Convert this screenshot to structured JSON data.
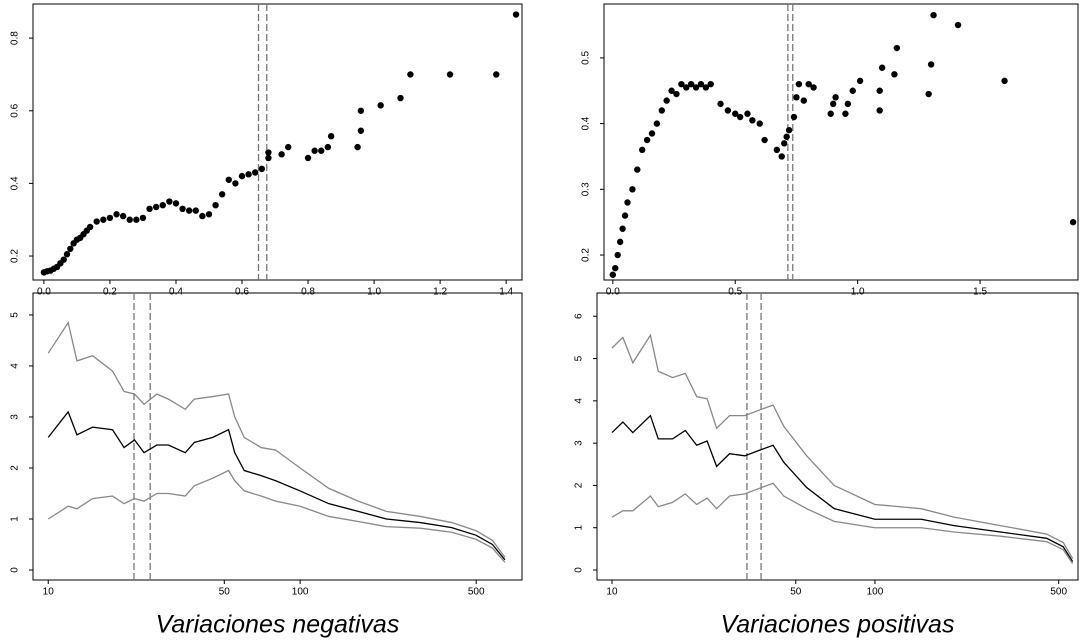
{
  "chart_data": [
    {
      "type": "scatter",
      "color": "#000000",
      "x": [
        0,
        0.01,
        0.02,
        0.03,
        0.04,
        0.05,
        0.06,
        0.07,
        0.08,
        0.09,
        0.1,
        0.11,
        0.12,
        0.13,
        0.14,
        0.16,
        0.18,
        0.2,
        0.22,
        0.24,
        0.26,
        0.28,
        0.3,
        0.32,
        0.34,
        0.36,
        0.38,
        0.4,
        0.42,
        0.44,
        0.46,
        0.48,
        0.5,
        0.52,
        0.54,
        0.56,
        0.58,
        0.6,
        0.62,
        0.64,
        0.66,
        0.68,
        0.68,
        0.72,
        0.74,
        0.8,
        0.82,
        0.84,
        0.86,
        0.87,
        0.95,
        0.96,
        0.96,
        1.02,
        1.08,
        1.11,
        1.23,
        1.37,
        1.43
      ],
      "values": [
        0.155,
        0.158,
        0.16,
        0.165,
        0.17,
        0.18,
        0.19,
        0.205,
        0.22,
        0.235,
        0.245,
        0.25,
        0.26,
        0.27,
        0.28,
        0.295,
        0.3,
        0.305,
        0.315,
        0.31,
        0.3,
        0.3,
        0.305,
        0.33,
        0.335,
        0.34,
        0.35,
        0.345,
        0.33,
        0.325,
        0.325,
        0.31,
        0.315,
        0.34,
        0.37,
        0.41,
        0.4,
        0.42,
        0.425,
        0.43,
        0.44,
        0.47,
        0.485,
        0.48,
        0.5,
        0.47,
        0.49,
        0.49,
        0.5,
        0.53,
        0.5,
        0.545,
        0.6,
        0.615,
        0.635,
        0.7,
        0.7,
        0.7,
        0.865
      ],
      "xlim": [
        -0.033,
        1.448
      ],
      "ylim": [
        0.134,
        0.894
      ],
      "xticks": [
        {
          "value": 0,
          "label": "0.0"
        },
        0.2,
        0.4,
        0.6,
        0.8,
        {
          "value": 1,
          "label": "1.0"
        },
        1.2,
        1.4
      ],
      "yticks": [
        0.2,
        0.4,
        0.6,
        0.8
      ],
      "vlines": [
        0.65,
        0.675
      ]
    },
    {
      "type": "scatter",
      "color": "#000000",
      "x": [
        0,
        0.01,
        0.02,
        0.03,
        0.04,
        0.05,
        0.06,
        0.08,
        0.1,
        0.12,
        0.14,
        0.16,
        0.18,
        0.2,
        0.22,
        0.24,
        0.26,
        0.28,
        0.3,
        0.32,
        0.34,
        0.36,
        0.38,
        0.4,
        0.44,
        0.47,
        0.5,
        0.52,
        0.55,
        0.57,
        0.6,
        0.62,
        0.67,
        0.69,
        0.7,
        0.71,
        0.72,
        0.74,
        0.75,
        0.76,
        0.78,
        0.8,
        0.82,
        0.89,
        0.9,
        0.91,
        0.95,
        0.96,
        0.98,
        1.01,
        1.09,
        1.09,
        1.1,
        1.15,
        1.16,
        1.29,
        1.3,
        1.31,
        1.41,
        1.6,
        1.88
      ],
      "values": [
        0.17,
        0.18,
        0.2,
        0.22,
        0.24,
        0.26,
        0.28,
        0.3,
        0.33,
        0.36,
        0.375,
        0.385,
        0.4,
        0.42,
        0.435,
        0.45,
        0.445,
        0.46,
        0.455,
        0.46,
        0.455,
        0.46,
        0.455,
        0.46,
        0.43,
        0.42,
        0.415,
        0.41,
        0.415,
        0.405,
        0.4,
        0.375,
        0.36,
        0.35,
        0.37,
        0.38,
        0.39,
        0.41,
        0.44,
        0.46,
        0.435,
        0.46,
        0.455,
        0.415,
        0.43,
        0.44,
        0.415,
        0.43,
        0.45,
        0.465,
        0.42,
        0.45,
        0.485,
        0.475,
        0.515,
        0.445,
        0.49,
        0.565,
        0.55,
        0.465,
        0.25
      ],
      "xlim": [
        -0.036,
        1.9
      ],
      "ylim": [
        0.162,
        0.582
      ],
      "xticks": [
        {
          "value": 0,
          "label": "0.0"
        },
        0.5,
        {
          "value": 1,
          "label": "1.0"
        },
        1.5
      ],
      "yticks": [
        0.2,
        0.3,
        0.4,
        0.5
      ],
      "vlines": [
        0.715,
        0.735
      ]
    },
    {
      "type": "line",
      "xscale": "log",
      "xlabel": "Variaciones negativas",
      "x": [
        10,
        12,
        13,
        15,
        18,
        20,
        22,
        24,
        27,
        30,
        35,
        38,
        45,
        52,
        55,
        60,
        70,
        80,
        100,
        130,
        170,
        220,
        300,
        400,
        500,
        580,
        650
      ],
      "series": [
        {
          "color": "#888888",
          "values": [
            4.25,
            4.85,
            4.1,
            4.2,
            3.9,
            3.5,
            3.45,
            3.25,
            3.45,
            3.35,
            3.15,
            3.35,
            3.4,
            3.45,
            3.0,
            2.6,
            2.4,
            2.35,
            2.0,
            1.6,
            1.35,
            1.15,
            1.05,
            0.93,
            0.77,
            0.58,
            0.25
          ]
        },
        {
          "color": "#000000",
          "values": [
            2.6,
            3.1,
            2.65,
            2.8,
            2.75,
            2.4,
            2.55,
            2.3,
            2.45,
            2.45,
            2.3,
            2.5,
            2.6,
            2.75,
            2.3,
            1.95,
            1.85,
            1.75,
            1.55,
            1.3,
            1.15,
            1.0,
            0.93,
            0.83,
            0.68,
            0.5,
            0.2
          ]
        },
        {
          "color": "#888888",
          "values": [
            1.0,
            1.25,
            1.2,
            1.4,
            1.45,
            1.3,
            1.4,
            1.35,
            1.5,
            1.5,
            1.45,
            1.65,
            1.8,
            1.95,
            1.75,
            1.55,
            1.45,
            1.35,
            1.25,
            1.05,
            0.95,
            0.85,
            0.82,
            0.74,
            0.6,
            0.43,
            0.15
          ]
        }
      ],
      "xlim": [
        8.7,
        760
      ],
      "ylim": [
        -0.196,
        5.43
      ],
      "xticks": [
        10,
        50,
        100,
        500
      ],
      "yticks": [
        0,
        1,
        2,
        3,
        4,
        5
      ],
      "vlines": [
        21.9,
        25.4
      ]
    },
    {
      "type": "line",
      "xscale": "log",
      "xlabel": "Variaciones positivas",
      "x": [
        10,
        11,
        12,
        14,
        15,
        17,
        19,
        21,
        23,
        25,
        28,
        32,
        37,
        41,
        45,
        55,
        70,
        100,
        150,
        200,
        300,
        450,
        520,
        565
      ],
      "series": [
        {
          "color": "#888888",
          "values": [
            5.25,
            5.5,
            4.9,
            5.55,
            4.7,
            4.55,
            4.65,
            4.1,
            4.05,
            3.35,
            3.65,
            3.65,
            3.8,
            3.9,
            3.4,
            2.7,
            2.0,
            1.55,
            1.45,
            1.25,
            1.05,
            0.85,
            0.65,
            0.27
          ]
        },
        {
          "color": "#000000",
          "values": [
            3.25,
            3.5,
            3.25,
            3.65,
            3.1,
            3.1,
            3.3,
            2.95,
            3.05,
            2.45,
            2.75,
            2.7,
            2.85,
            2.95,
            2.55,
            1.95,
            1.45,
            1.2,
            1.2,
            1.05,
            0.9,
            0.75,
            0.55,
            0.2
          ]
        },
        {
          "color": "#888888",
          "values": [
            1.25,
            1.4,
            1.4,
            1.75,
            1.5,
            1.6,
            1.8,
            1.55,
            1.7,
            1.45,
            1.75,
            1.8,
            1.95,
            2.05,
            1.75,
            1.45,
            1.15,
            1.0,
            1.0,
            0.9,
            0.8,
            0.67,
            0.48,
            0.15
          ]
        }
      ],
      "xlim": [
        8.77,
        592
      ],
      "ylim": [
        -0.236,
        6.55
      ],
      "xticks": [
        10,
        50,
        100,
        500
      ],
      "yticks": [
        0,
        1,
        2,
        3,
        4,
        5,
        6
      ],
      "vlines": [
        32.6,
        36.9
      ]
    }
  ]
}
